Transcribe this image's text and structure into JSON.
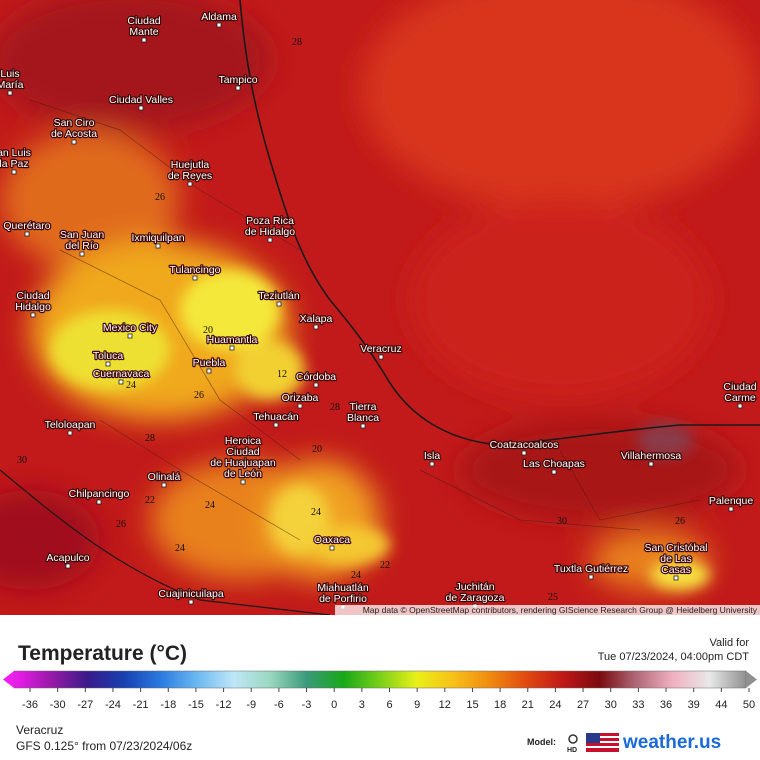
{
  "map": {
    "places": [
      [
        "Aldama"
      ],
      [
        "Ciudad",
        "Mante"
      ],
      [
        "Tampico"
      ],
      [
        "Ciudad Valles"
      ],
      [
        "San Ciro",
        "de Acosta"
      ],
      [
        "Huejutla",
        "de Reyes"
      ],
      [
        "Querétaro"
      ],
      [
        "San Juan",
        "del Río"
      ],
      [
        "Ixmiquilpan"
      ],
      [
        "Poza Rica",
        "de Hidalgo"
      ],
      [
        "Tulancingo"
      ],
      [
        "Teziutlán"
      ],
      [
        "Xalapa"
      ],
      [
        "Ciudad",
        "Hidalgo"
      ],
      [
        "Mexico City"
      ],
      [
        "Huamantla"
      ],
      [
        "Veracruz"
      ],
      [
        "Toluca"
      ],
      [
        "Puebla"
      ],
      [
        "Cuernavaca"
      ],
      [
        "Córdoba"
      ],
      [
        "Orizaba"
      ],
      [
        "Tierra",
        "Blanca"
      ],
      [
        "Tehuacán"
      ],
      [
        "Teloloapan"
      ],
      [
        "Heroica",
        "Ciudad",
        "de Huajuapan",
        "de León"
      ],
      [
        "Coatzacoalcos"
      ],
      [
        "Villahermosa"
      ],
      [
        "Las Choapas"
      ],
      [
        "Isla"
      ],
      [
        "Olinalá"
      ],
      [
        "Chilpancingo"
      ],
      [
        "Palenque"
      ],
      [
        "Oaxaca"
      ],
      [
        "San Cristóbal",
        "de Las",
        "Casas"
      ],
      [
        "Acapulco"
      ],
      [
        "Tuxtla Gutiérrez"
      ],
      [
        "Juchitán",
        "de Zaragoza"
      ],
      [
        "Miahuatlán",
        "de Porfirio"
      ],
      [
        "Cuajinicuilapa"
      ],
      [
        "Ciudad",
        "Carme"
      ],
      [
        "Luis",
        "María"
      ],
      [
        "an Luis",
        "la Paz"
      ]
    ],
    "contours": [
      28,
      26,
      20,
      26,
      24,
      28,
      22,
      26,
      24,
      24,
      24,
      20,
      28,
      12,
      22,
      24,
      30,
      26,
      25,
      30
    ],
    "attribution": "Map data © OpenStreetMap contributors, rendering GIScience Research Group @ Heidelberg University"
  },
  "legend": {
    "title": "Temperature (°C)",
    "ticks": [
      -36,
      -30,
      -27,
      -24,
      -21,
      -18,
      -15,
      -12,
      -9,
      -6,
      -3,
      0,
      3,
      6,
      9,
      12,
      15,
      18,
      21,
      24,
      27,
      30,
      33,
      36,
      39,
      44,
      50
    ],
    "colors": [
      "#f01cf0",
      "#9a1aa8",
      "#3a1a8a",
      "#1840b0",
      "#2a7ae0",
      "#6ab8f0",
      "#bfe6f8",
      "#9ad8c0",
      "#3a9a7a",
      "#18a818",
      "#7ad018",
      "#e8f018",
      "#f8c018",
      "#f08a10",
      "#e04a10",
      "#c01818",
      "#7a0a10",
      "#b06878",
      "#f0b0c0",
      "#e8e8e8",
      "#909090"
    ]
  },
  "valid_label": "Valid for",
  "valid_time": "Tue 07/23/2024, 04:00pm CDT",
  "location": "Veracruz",
  "model_run": "GFS 0.125° from  07/23/2024/06z",
  "model_label": "Model:",
  "model_badge": "HD",
  "brand": "weather.us"
}
